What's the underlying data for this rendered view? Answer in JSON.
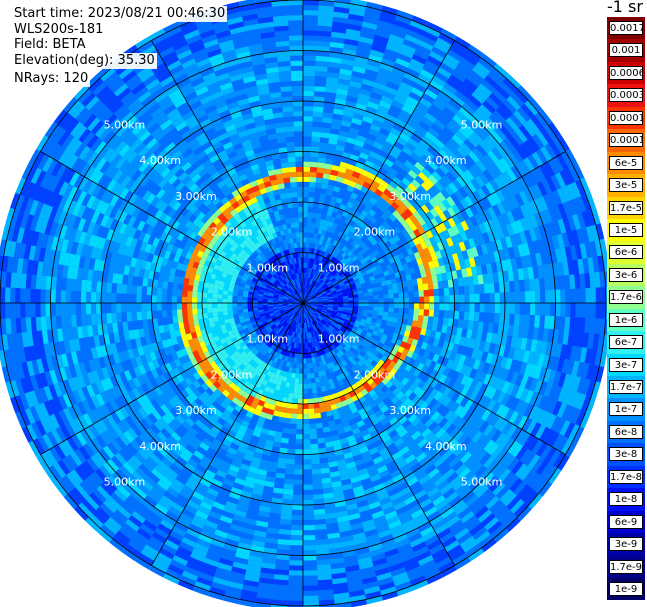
{
  "header": {
    "start_time": "Start time: 2023/08/21 00:46:30",
    "device": "WLS200s-181",
    "field": "Field: BETA",
    "elevation": "Elevation(deg): 35.30",
    "nrays": "NRays: 120"
  },
  "colorbar": {
    "units": "-1 sr",
    "levels": [
      {
        "label": "0.0017",
        "color": "#7f0000"
      },
      {
        "label": "0.001",
        "color": "#a50000"
      },
      {
        "label": "0.0006",
        "color": "#cc0000"
      },
      {
        "label": "0.0003",
        "color": "#ee1111"
      },
      {
        "label": "0.00017",
        "color": "#ff3300"
      },
      {
        "label": "0.0001",
        "color": "#ff6600"
      },
      {
        "label": "6e-5",
        "color": "#ff8c00"
      },
      {
        "label": "3e-5",
        "color": "#ffb000"
      },
      {
        "label": "1.7e-5",
        "color": "#ffd500"
      },
      {
        "label": "1e-5",
        "color": "#ffff00"
      },
      {
        "label": "6e-6",
        "color": "#e0ff30"
      },
      {
        "label": "3e-6",
        "color": "#b8ff60"
      },
      {
        "label": "1.7e-6",
        "color": "#90ff90"
      },
      {
        "label": "1e-6",
        "color": "#60ffc0"
      },
      {
        "label": "6e-7",
        "color": "#30f0f0"
      },
      {
        "label": "3e-7",
        "color": "#00d8ff"
      },
      {
        "label": "1.7e-7",
        "color": "#00b4ff"
      },
      {
        "label": "1e-7",
        "color": "#0090ff"
      },
      {
        "label": "6e-8",
        "color": "#0070ff"
      },
      {
        "label": "3e-8",
        "color": "#0050ff"
      },
      {
        "label": "1.7e-8",
        "color": "#0030ff"
      },
      {
        "label": "1e-8",
        "color": "#0010f0"
      },
      {
        "label": "6e-9",
        "color": "#0000d0"
      },
      {
        "label": "3e-9",
        "color": "#0000a8"
      },
      {
        "label": "1.7e-9",
        "color": "#000088"
      },
      {
        "label": "1e-9",
        "color": "#000066"
      }
    ]
  },
  "range_rings": [
    {
      "range_km": 1,
      "label": "1.00km"
    },
    {
      "range_km": 2,
      "label": "2.00km"
    },
    {
      "range_km": 3,
      "label": "3.00km"
    },
    {
      "range_km": 4,
      "label": "4.00km"
    },
    {
      "range_km": 5,
      "label": "5.00km"
    }
  ],
  "max_range_km": 6,
  "azimuth_spokes_deg": [
    0,
    30,
    60,
    90,
    120,
    150,
    180,
    210,
    240,
    270,
    300,
    330
  ]
}
